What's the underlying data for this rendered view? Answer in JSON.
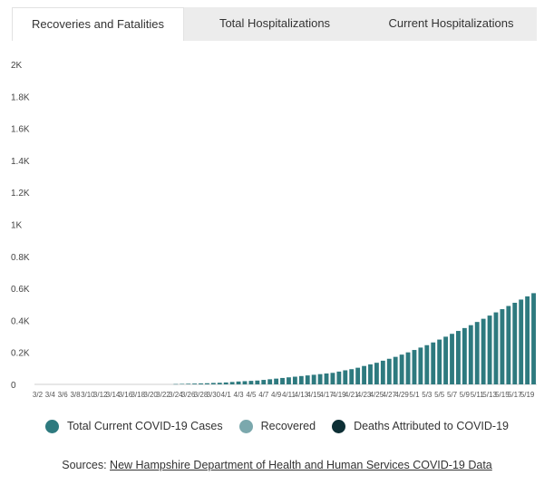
{
  "tabs": [
    {
      "label": "Recoveries and Fatalities",
      "active": true
    },
    {
      "label": "Total Hospitalizations",
      "active": false
    },
    {
      "label": "Current Hospitalizations",
      "active": false
    }
  ],
  "legend": [
    {
      "label": "Total Current COVID-19 Cases",
      "color": "#2e7a7f"
    },
    {
      "label": "Recovered",
      "color": "#7ba8ad"
    },
    {
      "label": "Deaths Attributed to COVID-19",
      "color": "#0d2f35"
    }
  ],
  "sources": {
    "prefix": "Sources: ",
    "link_text": "New Hampshire Department of Health and Human Services COVID-19 Data"
  },
  "chart_data": {
    "type": "bar",
    "stacked": true,
    "ylim": [
      0,
      2000
    ],
    "yticks": [
      0,
      200,
      400,
      600,
      800,
      1000,
      1200,
      1400,
      1600,
      1800,
      2000
    ],
    "ytick_labels": [
      "0",
      "0.2K",
      "0.4K",
      "0.6K",
      "0.8K",
      "1K",
      "1.2K",
      "1.4K",
      "1.6K",
      "1.8K",
      "2K"
    ],
    "categories": [
      "3/2",
      "3/3",
      "3/4",
      "3/5",
      "3/6",
      "3/7",
      "3/8",
      "3/9",
      "3/10",
      "3/11",
      "3/12",
      "3/13",
      "3/14",
      "3/15",
      "3/16",
      "3/17",
      "3/18",
      "3/19",
      "3/20",
      "3/21",
      "3/22",
      "3/23",
      "3/24",
      "3/25",
      "3/26",
      "3/27",
      "3/28",
      "3/29",
      "3/30",
      "3/31",
      "4/1",
      "4/2",
      "4/3",
      "4/4",
      "4/5",
      "4/6",
      "4/7",
      "4/8",
      "4/9",
      "4/10",
      "4/11",
      "4/12",
      "4/13",
      "4/14",
      "4/15",
      "4/16",
      "4/17",
      "4/18",
      "4/19",
      "4/20",
      "4/21",
      "4/22",
      "4/23",
      "4/24",
      "4/25",
      "4/26",
      "4/27",
      "4/28",
      "4/29",
      "4/30",
      "5/1",
      "5/2",
      "5/3",
      "5/4",
      "5/5",
      "5/6",
      "5/7",
      "5/8",
      "5/9",
      "5/10",
      "5/11",
      "5/12",
      "5/13",
      "5/14",
      "5/15",
      "5/16",
      "5/17",
      "5/18",
      "5/19",
      "5/20"
    ],
    "series": [
      {
        "name": "Total Current COVID-19 Cases",
        "values": [
          0,
          0,
          0,
          0,
          0,
          0,
          0,
          0,
          0,
          0,
          0,
          0,
          0,
          0,
          0,
          0,
          0,
          0,
          0,
          0,
          0,
          0,
          2,
          3,
          4,
          5,
          6,
          7,
          9,
          10,
          12,
          15,
          18,
          20,
          22,
          24,
          28,
          32,
          36,
          40,
          44,
          48,
          52,
          56,
          60,
          64,
          68,
          72,
          80,
          88,
          95,
          104,
          115,
          125,
          135,
          148,
          160,
          172,
          186,
          200,
          215,
          230,
          245,
          262,
          280,
          298,
          316,
          334,
          352,
          370,
          390,
          410,
          430,
          450,
          470,
          490,
          510,
          530,
          550,
          570
        ]
      },
      {
        "name": "Recovered",
        "values": [
          0,
          0,
          0,
          0,
          0,
          0,
          0,
          0,
          0,
          0,
          0,
          0,
          0,
          0,
          0,
          0,
          0,
          0,
          0,
          0,
          0,
          0,
          0,
          0,
          0,
          0,
          0,
          0,
          0,
          0,
          0,
          0,
          0,
          0,
          0,
          0,
          0,
          0,
          0,
          0,
          0,
          0,
          0,
          0,
          0,
          0,
          0,
          0,
          0,
          0,
          0,
          0,
          0,
          0,
          0,
          0,
          0,
          0,
          0,
          0,
          0,
          0,
          0,
          0,
          0,
          0,
          0,
          0,
          0,
          0,
          0,
          0,
          0,
          0,
          0,
          0,
          0,
          0,
          0,
          0
        ]
      },
      {
        "name": "Deaths Attributed to COVID-19",
        "values": [
          0,
          0,
          0,
          0,
          0,
          0,
          0,
          0,
          0,
          0,
          0,
          0,
          0,
          0,
          0,
          0,
          0,
          0,
          0,
          0,
          0,
          0,
          0,
          0,
          0,
          0,
          0,
          0,
          0,
          0,
          0,
          0,
          0,
          0,
          0,
          0,
          0,
          0,
          0,
          0,
          0,
          0,
          0,
          0,
          0,
          0,
          0,
          0,
          0,
          0,
          0,
          0,
          0,
          0,
          0,
          0,
          0,
          0,
          0,
          0,
          0,
          0,
          0,
          0,
          0,
          0,
          0,
          0,
          0,
          0,
          0,
          0,
          0,
          0,
          0,
          0,
          0,
          0,
          0,
          0
        ]
      }
    ]
  }
}
